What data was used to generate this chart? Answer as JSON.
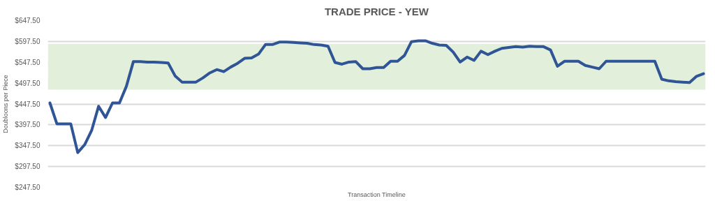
{
  "chart_data": {
    "type": "line",
    "title": "TRADE PRICE - YEW",
    "xlabel": "Transaction Timeline",
    "ylabel": "Doubloons per Piece",
    "categories": [
      null,
      null,
      null,
      null,
      null,
      null,
      null,
      null,
      null,
      null,
      null,
      null,
      null,
      null,
      null,
      null,
      null,
      null,
      null,
      null,
      null,
      null,
      null,
      null,
      null,
      null,
      null,
      null,
      null,
      null,
      null,
      null,
      null,
      null,
      null,
      null,
      null,
      null,
      null,
      null,
      null,
      null,
      null,
      null,
      null,
      null,
      null,
      null,
      null,
      null,
      null,
      null,
      null,
      null,
      null,
      null,
      null,
      null,
      null,
      null,
      null,
      null,
      null,
      null,
      null,
      null,
      null,
      null,
      null,
      null,
      null,
      null,
      null,
      null,
      null,
      null,
      null,
      null,
      null,
      null,
      null,
      null,
      null,
      null,
      null,
      null,
      null,
      null,
      null,
      null,
      null,
      null,
      null,
      null,
      null
    ],
    "series": [
      {
        "color": "#2f5597",
        "values": [
          450,
          400,
          400,
          400,
          331,
          350,
          384,
          442,
          415,
          450,
          450,
          490,
          549,
          549,
          548,
          548,
          547,
          546,
          515,
          500,
          500,
          500,
          510,
          522,
          530,
          525,
          536,
          545,
          557,
          558,
          567,
          590,
          590,
          596,
          596,
          595,
          594,
          593,
          590,
          589,
          586,
          547,
          543,
          548,
          549,
          532,
          532,
          535,
          535,
          550,
          550,
          564,
          597,
          599,
          599,
          593,
          589,
          588,
          572,
          548,
          560,
          552,
          574,
          566,
          574,
          581,
          583,
          585,
          584,
          586,
          585,
          585,
          577,
          538,
          550,
          550,
          550,
          540,
          536,
          532,
          550,
          550,
          550,
          550,
          550,
          550,
          550,
          550,
          507,
          503,
          501,
          500,
          499,
          514,
          520
        ]
      }
    ],
    "ylim": [
      247.5,
      647.5
    ],
    "yticks": [
      {
        "value": 247.5,
        "label": "$247.50"
      },
      {
        "value": 297.5,
        "label": "$297.50"
      },
      {
        "value": 347.5,
        "label": "$347.50"
      },
      {
        "value": 397.5,
        "label": "$397.50"
      },
      {
        "value": 447.5,
        "label": "$447.50"
      },
      {
        "value": 497.5,
        "label": "$497.50"
      },
      {
        "value": 547.5,
        "label": "$547.50"
      },
      {
        "value": 597.5,
        "label": "$597.50"
      },
      {
        "value": 647.5,
        "label": "$647.50"
      }
    ],
    "grid": "y",
    "tick_labels": "y",
    "line_style": "solid",
    "bands": [
      {
        "axis": "y",
        "from": 482,
        "to": 592,
        "color": "#e2efda"
      }
    ]
  }
}
